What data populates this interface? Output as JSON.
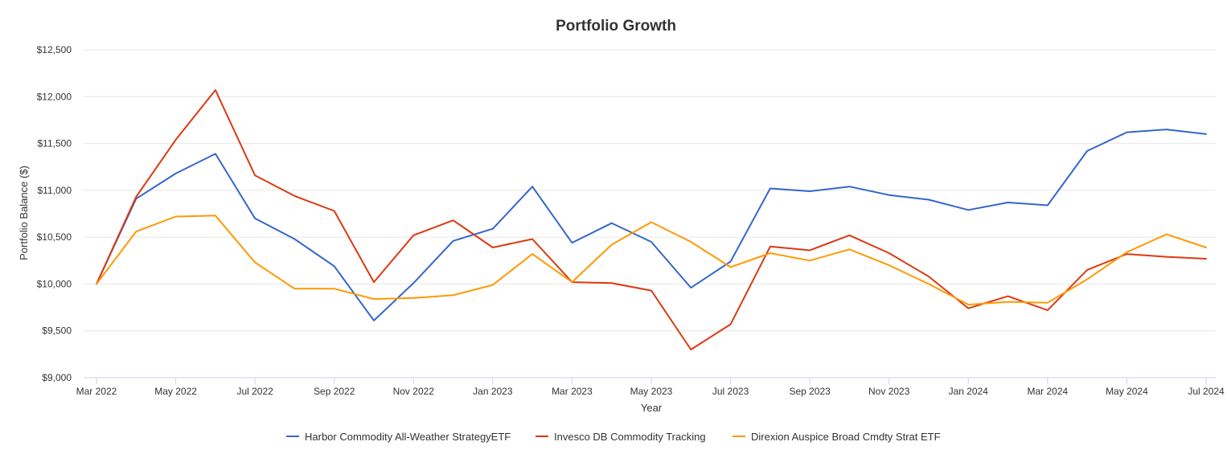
{
  "chart_data": {
    "type": "line",
    "title": "Portfolio Growth",
    "xlabel": "Year",
    "ylabel": "Portfolio Balance ($)",
    "ylim": [
      9000,
      12500
    ],
    "y_ticks": [
      9000,
      9500,
      10000,
      10500,
      11000,
      11500,
      12000,
      12500
    ],
    "y_tick_labels": [
      "$9,000",
      "$9,500",
      "$10,000",
      "$10,500",
      "$11,000",
      "$11,500",
      "$12,000",
      "$12,500"
    ],
    "x": [
      "Mar 2022",
      "Apr 2022",
      "May 2022",
      "Jun 2022",
      "Jul 2022",
      "Aug 2022",
      "Sep 2022",
      "Oct 2022",
      "Nov 2022",
      "Dec 2022",
      "Jan 2023",
      "Feb 2023",
      "Mar 2023",
      "Apr 2023",
      "May 2023",
      "Jun 2023",
      "Jul 2023",
      "Aug 2023",
      "Sep 2023",
      "Oct 2023",
      "Nov 2023",
      "Dec 2023",
      "Jan 2024",
      "Feb 2024",
      "Mar 2024",
      "Apr 2024",
      "May 2024",
      "Jun 2024",
      "Jul 2024"
    ],
    "x_tick_labels": [
      "Mar 2022",
      "May 2022",
      "Jul 2022",
      "Sep 2022",
      "Nov 2022",
      "Jan 2023",
      "Mar 2023",
      "May 2023",
      "Jul 2023",
      "Sep 2023",
      "Nov 2023",
      "Jan 2024",
      "Mar 2024",
      "May 2024",
      "Jul 2024"
    ],
    "grid": true,
    "legend_position": "bottom",
    "series": [
      {
        "name": "Harbor Commodity All-Weather StrategyETF",
        "color": "#3366cc",
        "values": [
          10000,
          10910,
          11180,
          11390,
          10700,
          10480,
          10190,
          9610,
          10010,
          10460,
          10590,
          11040,
          10440,
          10650,
          10450,
          9960,
          10240,
          11020,
          10990,
          11040,
          10950,
          10900,
          10790,
          10870,
          10840,
          11420,
          11620,
          11650,
          11600
        ]
      },
      {
        "name": "Invesco DB Commodity Tracking",
        "color": "#dc3912",
        "values": [
          10000,
          10930,
          11540,
          12070,
          11160,
          10940,
          10780,
          10020,
          10520,
          10680,
          10390,
          10480,
          10020,
          10010,
          9930,
          9300,
          9570,
          10400,
          10360,
          10520,
          10330,
          10080,
          9740,
          9870,
          9720,
          10150,
          10320,
          10290,
          10270
        ]
      },
      {
        "name": "Direxion Auspice Broad Cmdty Strat ETF",
        "color": "#ff9900",
        "values": [
          10000,
          10560,
          10720,
          10730,
          10230,
          9950,
          9950,
          9840,
          9850,
          9880,
          9990,
          10320,
          10020,
          10420,
          10660,
          10450,
          10180,
          10330,
          10250,
          10370,
          10200,
          10000,
          9780,
          9810,
          9800,
          10050,
          10340,
          10530,
          10390
        ]
      }
    ]
  }
}
